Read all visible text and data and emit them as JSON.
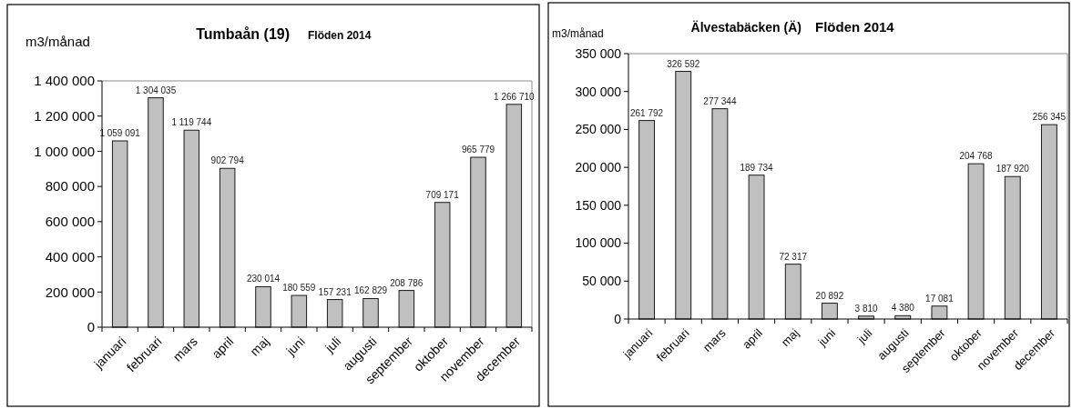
{
  "chart_data": [
    {
      "type": "bar",
      "title": "Tumbaån (19)",
      "subtitle": "Flöden 2014",
      "ylabel": "m3/månad",
      "categories": [
        "januari",
        "februari",
        "mars",
        "april",
        "maj",
        "juni",
        "juli",
        "augusti",
        "september",
        "oktober",
        "november",
        "december"
      ],
      "values": [
        1059091,
        1304035,
        1119744,
        902794,
        230014,
        180559,
        157231,
        162829,
        208786,
        709171,
        965779,
        1266710
      ],
      "value_labels": [
        "1 059 091",
        "1 304 035",
        "1 119 744",
        "902 794",
        "230 014",
        "180 559",
        "157 231",
        "162 829",
        "208 786",
        "709 171",
        "965 779",
        "1 266 710"
      ],
      "color": "#c0c0c0",
      "ylim": [
        0,
        1400000
      ],
      "yticks": [
        0,
        {
          "value": 200000,
          "label": "200 000"
        },
        {
          "value": 400000,
          "label": "400 000"
        },
        {
          "value": 600000,
          "label": "600 000"
        },
        {
          "value": 800000,
          "label": "800 000"
        },
        {
          "value": 1000000,
          "label": "1 000 000"
        },
        {
          "value": 1200000,
          "label": "1 200 000"
        },
        {
          "value": 1400000,
          "label": "1 400 000"
        }
      ]
    },
    {
      "type": "bar",
      "title": "Älvestabäcken (Ä)",
      "subtitle": "Flöden 2014",
      "ylabel": "m3/månad",
      "categories": [
        "januari",
        "februari",
        "mars",
        "april",
        "maj",
        "juni",
        "juli",
        "augusti",
        "september",
        "oktober",
        "november",
        "december"
      ],
      "values": [
        261792,
        326592,
        277344,
        189734,
        72317,
        20892,
        3810,
        4380,
        17081,
        204768,
        187920,
        256345
      ],
      "value_labels": [
        "261 792",
        "326 592",
        "277 344",
        "189 734",
        "72 317",
        "20 892",
        "3 810",
        "4 380",
        "17 081",
        "204 768",
        "187 920",
        "256 345"
      ],
      "color": "#c0c0c0",
      "ylim": [
        0,
        350000
      ],
      "yticks": [
        0,
        {
          "value": 50000,
          "label": "50 000"
        },
        {
          "value": 100000,
          "label": "100 000"
        },
        {
          "value": 150000,
          "label": "150 000"
        },
        {
          "value": 200000,
          "label": "200 000"
        },
        {
          "value": 250000,
          "label": "250 000"
        },
        {
          "value": 300000,
          "label": "300 000"
        },
        {
          "value": 350000,
          "label": "350 000"
        }
      ]
    }
  ]
}
